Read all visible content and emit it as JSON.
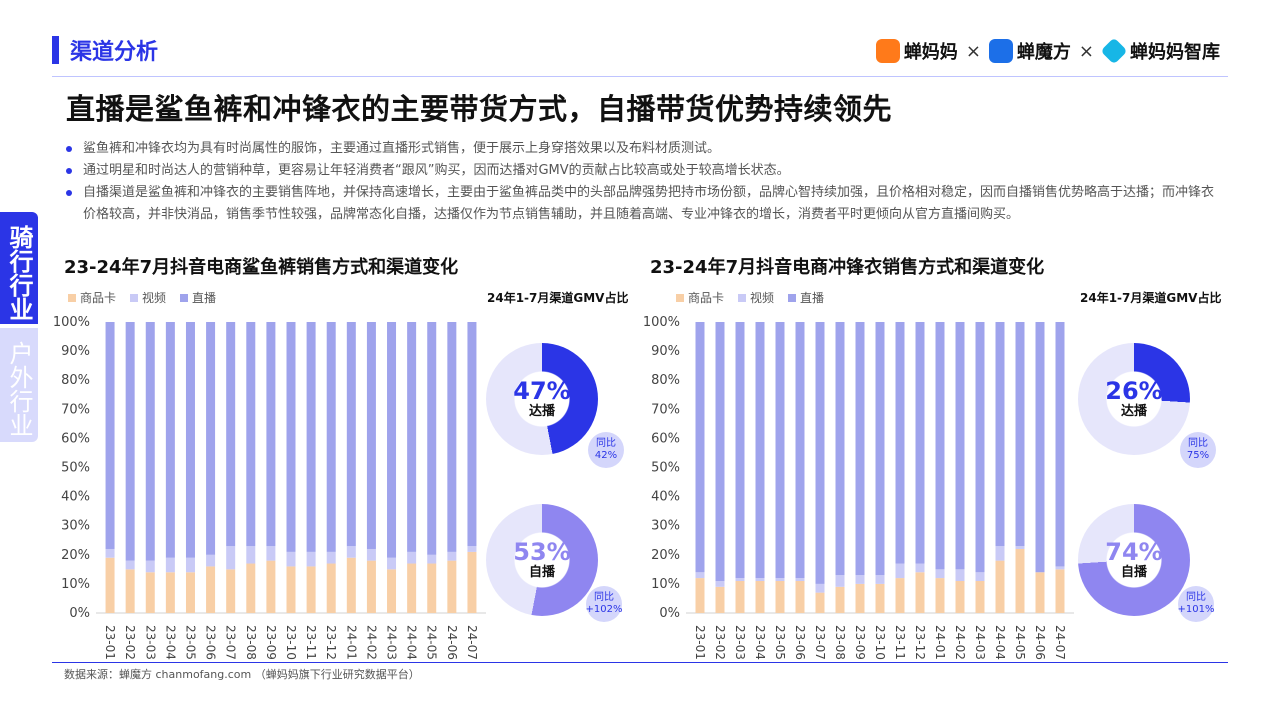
{
  "section": {
    "title": "渠道分析"
  },
  "logos": [
    {
      "name": "蝉妈妈",
      "color": "#ff7a1a"
    },
    {
      "name": "蝉魔方",
      "color": "#1c6fe8"
    },
    {
      "name": "蝉妈妈智库",
      "color": "#17b6e6"
    }
  ],
  "logo_separator": "×",
  "headline": "直播是鲨鱼裤和冲锋衣的主要带货方式，自播带货优势持续领先",
  "bullets": [
    "鲨鱼裤和冲锋衣均为具有时尚属性的服饰，主要通过直播形式销售，便于展示上身穿搭效果以及布料材质测试。",
    "通过明星和时尚达人的营销种草，更容易让年轻消费者“跟风”购买，因而达播对GMV的贡献占比较高或处于较高增长状态。",
    "自播渠道是鲨鱼裤和冲锋衣的主要销售阵地，并保持高速增长，主要由于鲨鱼裤品类中的头部品牌强势把持市场份额，品牌心智持续加强，且价格相对稳定，因而自播销售优势略高于达播；而冲锋衣价格较高，并非快消品，销售季节性较强，品牌常态化自播，达播仅作为节点销售辅助，并且随着高端、专业冲锋衣的增长，消费者平时更倾向从官方直播间购买。"
  ],
  "side_tab": {
    "primary": "骑行行业",
    "secondary": "户外行业"
  },
  "colors": {
    "accent": "#2b35e6",
    "product_card": "#f8cfa6",
    "video": "#c9caf6",
    "live": "#9fa3ec",
    "daren": "#2b35e6",
    "self": "#8f86f0"
  },
  "chart_data": [
    {
      "type": "bar",
      "stacked": true,
      "title": "23-24年7月抖音电商鲨鱼裤销售方式和渠道变化",
      "legend": [
        "商品卡",
        "视频",
        "直播"
      ],
      "categories": [
        "23-01",
        "23-02",
        "23-03",
        "23-04",
        "23-05",
        "23-06",
        "23-07",
        "23-08",
        "23-09",
        "23-10",
        "23-11",
        "23-12",
        "24-01",
        "24-02",
        "24-03",
        "24-04",
        "24-05",
        "24-06",
        "24-07"
      ],
      "series": [
        {
          "name": "商品卡",
          "values": [
            19,
            15,
            14,
            14,
            14,
            16,
            15,
            17,
            18,
            16,
            16,
            17,
            19,
            18,
            15,
            17,
            17,
            18,
            21
          ]
        },
        {
          "name": "视频",
          "values": [
            3,
            3,
            4,
            5,
            5,
            4,
            8,
            6,
            5,
            5,
            5,
            4,
            4,
            4,
            4,
            4,
            3,
            3,
            2
          ]
        },
        {
          "name": "直播",
          "values": [
            78,
            82,
            82,
            81,
            81,
            80,
            77,
            77,
            77,
            79,
            79,
            79,
            77,
            78,
            81,
            79,
            80,
            79,
            77
          ]
        }
      ],
      "ylim": [
        0,
        100
      ],
      "yticks": [
        "0%",
        "10%",
        "20%",
        "30%",
        "40%",
        "50%",
        "60%",
        "70%",
        "80%",
        "90%",
        "100%"
      ],
      "gmv": {
        "label": "24年1-7月渠道GMV占比",
        "daren": {
          "pct": "47%",
          "label": "达播",
          "yoy_label": "同比",
          "yoy": "42%",
          "value": 47
        },
        "self": {
          "pct": "53%",
          "label": "自播",
          "yoy_label": "同比",
          "yoy": "+102%",
          "value": 53
        }
      }
    },
    {
      "type": "bar",
      "stacked": true,
      "title": "23-24年7月抖音电商冲锋衣销售方式和渠道变化",
      "legend": [
        "商品卡",
        "视频",
        "直播"
      ],
      "categories": [
        "23-01",
        "23-02",
        "23-03",
        "23-04",
        "23-05",
        "23-06",
        "23-07",
        "23-08",
        "23-09",
        "23-10",
        "23-11",
        "23-12",
        "24-01",
        "24-02",
        "24-03",
        "24-04",
        "24-05",
        "24-06",
        "24-07"
      ],
      "series": [
        {
          "name": "商品卡",
          "values": [
            12,
            9,
            11,
            11,
            11,
            11,
            7,
            9,
            10,
            10,
            12,
            14,
            12,
            11,
            11,
            18,
            22,
            14,
            15
          ]
        },
        {
          "name": "视频",
          "values": [
            2,
            2,
            1,
            1,
            1,
            1,
            3,
            4,
            3,
            3,
            5,
            3,
            3,
            4,
            3,
            5,
            1,
            0,
            1
          ]
        },
        {
          "name": "直播",
          "values": [
            86,
            89,
            88,
            88,
            88,
            88,
            90,
            87,
            87,
            87,
            83,
            83,
            85,
            85,
            86,
            77,
            77,
            86,
            84
          ]
        }
      ],
      "ylim": [
        0,
        100
      ],
      "yticks": [
        "0%",
        "10%",
        "20%",
        "30%",
        "40%",
        "50%",
        "60%",
        "70%",
        "80%",
        "90%",
        "100%"
      ],
      "gmv": {
        "label": "24年1-7月渠道GMV占比",
        "daren": {
          "pct": "26%",
          "label": "达播",
          "yoy_label": "同比",
          "yoy": "75%",
          "value": 26
        },
        "self": {
          "pct": "74%",
          "label": "自播",
          "yoy_label": "同比",
          "yoy": "+101%",
          "value": 74
        }
      }
    }
  ],
  "source": "数据来源：蝉魔方 chanmofang.com （蝉妈妈旗下行业研究数据平台）"
}
